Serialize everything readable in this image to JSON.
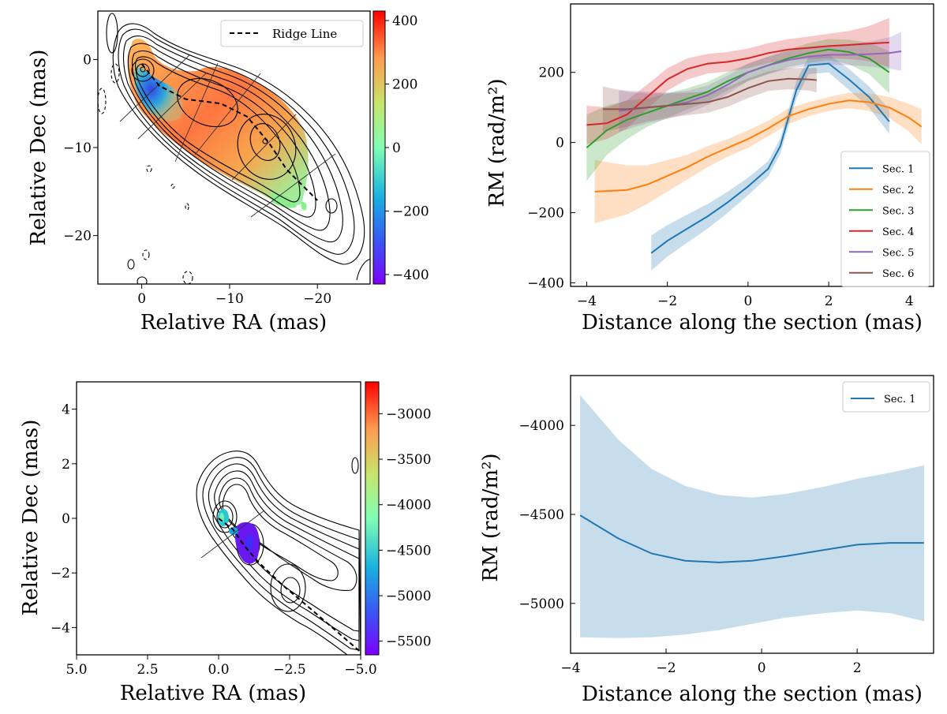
{
  "chart_data": [
    {
      "id": "map_top",
      "type": "heatmap",
      "title": "",
      "xlabel": "Relative RA (mas)",
      "ylabel": "Relative Dec (mas)",
      "xlim": [
        5,
        -26
      ],
      "ylim": [
        -25.5,
        5.5
      ],
      "xticks": [
        0,
        -10,
        -20
      ],
      "xtick_labels": [
        "0",
        "−10",
        "−20"
      ],
      "yticks": [
        0,
        -10,
        -20
      ],
      "ytick_labels": [
        "0",
        "−10",
        "−20"
      ],
      "colorbar": {
        "range": [
          -430,
          430
        ],
        "ticks": [
          400,
          200,
          0,
          -200,
          -400
        ],
        "tick_labels": [
          "400",
          "200",
          "0",
          "−200",
          "−400"
        ]
      },
      "legend": [
        {
          "label": "Ridge Line",
          "style": "dashed"
        }
      ],
      "legend_position": "top-right",
      "ridge_line": [
        [
          0,
          -0.5
        ],
        [
          -2,
          -3
        ],
        [
          -5,
          -4.5
        ],
        [
          -9,
          -5
        ],
        [
          -12,
          -6.5
        ],
        [
          -14.5,
          -9.5
        ],
        [
          -16.5,
          -12.5
        ],
        [
          -20,
          -16
        ]
      ]
    },
    {
      "id": "profile_top",
      "type": "line",
      "title": "",
      "xlabel": "Distance along the section (mas)",
      "ylabel": "RM (rad/m²)",
      "xlim": [
        -4.4,
        4.6
      ],
      "ylim": [
        -410,
        395
      ],
      "xticks": [
        -4,
        -2,
        0,
        2,
        4
      ],
      "xtick_labels": [
        "−4",
        "−2",
        "0",
        "2",
        "4"
      ],
      "yticks": [
        -400,
        -200,
        0,
        200
      ],
      "ytick_labels": [
        "−400",
        "−200",
        "0",
        "200"
      ],
      "legend_position": "bottom-right",
      "series": [
        {
          "name": "Sec. 1",
          "color": "#1f77b4",
          "x": [
            -2.4,
            -2.0,
            -1.5,
            -1.0,
            -0.5,
            0.0,
            0.5,
            0.8,
            1.2,
            1.5,
            2.0,
            2.5,
            3.0,
            3.5
          ],
          "y": [
            -315,
            -280,
            -245,
            -210,
            -170,
            -125,
            -75,
            -10,
            150,
            220,
            225,
            180,
            130,
            60
          ],
          "err": [
            50,
            45,
            40,
            35,
            30,
            25,
            22,
            22,
            25,
            25,
            25,
            30,
            30,
            35
          ]
        },
        {
          "name": "Sec. 2",
          "color": "#ff7f0e",
          "x": [
            -3.8,
            -3.0,
            -2.5,
            -2.0,
            -1.5,
            -1.0,
            -0.5,
            0.0,
            0.5,
            1.0,
            1.5,
            2.0,
            2.5,
            3.0,
            3.5,
            4.0,
            4.3
          ],
          "y": [
            -140,
            -135,
            -120,
            -95,
            -70,
            -40,
            -15,
            10,
            40,
            75,
            95,
            110,
            120,
            115,
            100,
            70,
            45
          ],
          "err": [
            90,
            70,
            55,
            45,
            35,
            30,
            25,
            25,
            22,
            22,
            20,
            20,
            22,
            25,
            30,
            40,
            50
          ]
        },
        {
          "name": "Sec. 3",
          "color": "#2ca02c",
          "x": [
            -4.0,
            -3.5,
            -3.0,
            -2.5,
            -2.0,
            -1.5,
            -1.0,
            -0.5,
            0.0,
            0.5,
            1.0,
            1.5,
            2.0,
            2.5,
            3.0,
            3.5
          ],
          "y": [
            -15,
            35,
            65,
            85,
            105,
            125,
            145,
            175,
            200,
            220,
            240,
            255,
            265,
            258,
            240,
            200
          ],
          "err": [
            95,
            70,
            55,
            40,
            35,
            30,
            28,
            26,
            25,
            25,
            25,
            28,
            30,
            35,
            45,
            60
          ]
        },
        {
          "name": "Sec. 4",
          "color": "#d62728",
          "x": [
            -4.0,
            -3.5,
            -3.0,
            -2.5,
            -2.0,
            -1.5,
            -1.0,
            -0.5,
            0.0,
            0.5,
            1.0,
            1.5,
            2.0,
            2.5,
            3.0,
            3.5
          ],
          "y": [
            50,
            55,
            80,
            130,
            180,
            210,
            225,
            230,
            240,
            255,
            265,
            270,
            275,
            278,
            282,
            285
          ],
          "err": [
            55,
            45,
            40,
            35,
            32,
            30,
            28,
            28,
            28,
            28,
            30,
            32,
            35,
            40,
            50,
            70
          ]
        },
        {
          "name": "Sec. 5",
          "color": "#9467bd",
          "x": [
            -3.2,
            -2.5,
            -2.0,
            -1.5,
            -1.0,
            -0.5,
            0.0,
            0.5,
            1.0,
            1.5,
            2.0,
            2.5,
            3.0,
            3.5,
            3.8
          ],
          "y": [
            90,
            100,
            105,
            115,
            135,
            165,
            200,
            220,
            235,
            245,
            250,
            250,
            252,
            255,
            260
          ],
          "err": [
            60,
            45,
            38,
            32,
            28,
            26,
            25,
            25,
            25,
            26,
            28,
            30,
            35,
            45,
            55
          ]
        },
        {
          "name": "Sec. 6",
          "color": "#8c564b",
          "x": [
            -3.6,
            -3.0,
            -2.5,
            -2.0,
            -1.5,
            -1.0,
            -0.5,
            0.0,
            0.5,
            1.0,
            1.5,
            1.7
          ],
          "y": [
            95,
            95,
            100,
            105,
            110,
            115,
            130,
            155,
            175,
            182,
            180,
            178
          ],
          "err": [
            65,
            50,
            40,
            35,
            32,
            30,
            28,
            28,
            28,
            30,
            32,
            35
          ]
        }
      ]
    },
    {
      "id": "map_bottom",
      "type": "heatmap",
      "title": "",
      "xlabel": "Relative RA (mas)",
      "ylabel": "Relative Dec (mas)",
      "xlim": [
        5,
        -5
      ],
      "ylim": [
        -5,
        5
      ],
      "xticks": [
        5,
        2.5,
        0,
        -2.5,
        -5
      ],
      "xtick_labels": [
        "5.0",
        "2.5",
        "0.0",
        "−2.5",
        "−5.0"
      ],
      "yticks": [
        4,
        2,
        0,
        -2,
        -4
      ],
      "ytick_labels": [
        "4",
        "2",
        "0",
        "−2",
        "−4"
      ],
      "colorbar": {
        "range": [
          -5650,
          -2650
        ],
        "ticks": [
          -3000,
          -3500,
          -4000,
          -4500,
          -5000,
          -5500
        ],
        "tick_labels": [
          "−3000",
          "−3500",
          "−4000",
          "−4500",
          "−5000",
          "−5500"
        ]
      },
      "ridge_line": [
        [
          0,
          0
        ],
        [
          -0.5,
          -0.4
        ],
        [
          -0.9,
          -1.0
        ],
        [
          -1.4,
          -1.6
        ],
        [
          -2.2,
          -2.4
        ],
        [
          -3.0,
          -3.1
        ],
        [
          -4.0,
          -4.0
        ],
        [
          -5.0,
          -4.9
        ]
      ]
    },
    {
      "id": "profile_bottom",
      "type": "line",
      "title": "",
      "xlabel": "Distance along the section (mas)",
      "ylabel": "RM (rad/m²)",
      "xlim": [
        -4.0,
        3.6
      ],
      "ylim": [
        -5280,
        -3720
      ],
      "xticks": [
        -4,
        -2,
        0,
        2
      ],
      "xtick_labels": [
        "−4",
        "−2",
        "0",
        "2"
      ],
      "yticks": [
        -4000,
        -4500,
        -5000
      ],
      "ytick_labels": [
        "−4000",
        "−4500",
        "−5000"
      ],
      "legend_position": "top-right",
      "series": [
        {
          "name": "Sec. 1",
          "color": "#1f77b4",
          "x": [
            -3.8,
            -3.0,
            -2.3,
            -1.6,
            -0.9,
            -0.2,
            0.5,
            1.3,
            2.0,
            2.7,
            3.4
          ],
          "y": [
            -4505,
            -4635,
            -4720,
            -4760,
            -4770,
            -4760,
            -4735,
            -4700,
            -4670,
            -4660,
            -4660
          ],
          "lower": [
            -5190,
            -5195,
            -5190,
            -5175,
            -5150,
            -5115,
            -5080,
            -5055,
            -5040,
            -5055,
            -5100
          ],
          "upper": [
            -3830,
            -4080,
            -4245,
            -4340,
            -4390,
            -4405,
            -4385,
            -4345,
            -4300,
            -4265,
            -4225
          ]
        }
      ]
    }
  ]
}
